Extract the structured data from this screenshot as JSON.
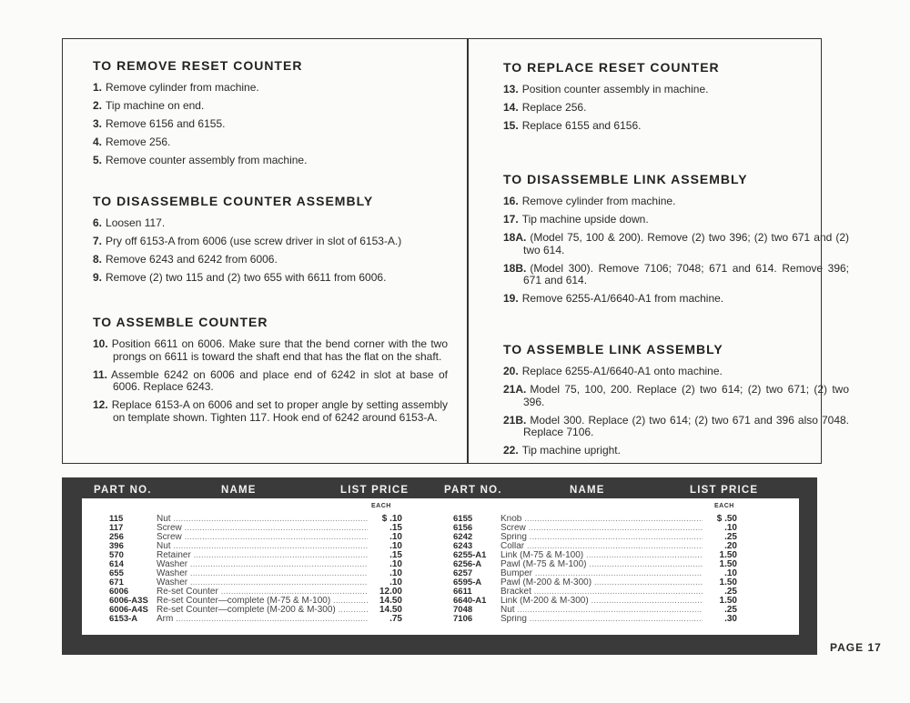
{
  "sections_left": [
    {
      "title": "TO REMOVE RESET COUNTER",
      "steps": [
        {
          "n": "1.",
          "t": "Remove cylinder from machine."
        },
        {
          "n": "2.",
          "t": "Tip machine on end."
        },
        {
          "n": "3.",
          "t": "Remove 6156 and 6155."
        },
        {
          "n": "4.",
          "t": "Remove 256."
        },
        {
          "n": "5.",
          "t": "Remove counter assembly from machine."
        }
      ]
    },
    {
      "title": "TO DISASSEMBLE COUNTER ASSEMBLY",
      "steps": [
        {
          "n": "6.",
          "t": "Loosen 117."
        },
        {
          "n": "7.",
          "t": "Pry off 6153-A from 6006 (use screw driver in slot of 6153-A.)"
        },
        {
          "n": "8.",
          "t": "Remove 6243 and 6242 from 6006."
        },
        {
          "n": "9.",
          "t": "Remove (2) two 115 and (2) two 655 with 6611 from 6006."
        }
      ]
    },
    {
      "title": "TO ASSEMBLE COUNTER",
      "steps": [
        {
          "n": "10.",
          "t": "Position 6611 on 6006. Make sure that the bend corner with the two prongs on 6611 is toward the shaft end that has the flat on the shaft."
        },
        {
          "n": "11.",
          "t": "Assemble 6242 on 6006 and place end of 6242 in slot at base of 6006. Replace 6243."
        },
        {
          "n": "12.",
          "t": "Replace 6153-A on 6006 and set to proper angle by setting assembly on template shown. Tighten 117. Hook end of 6242 around 6153-A."
        }
      ]
    }
  ],
  "sections_right": [
    {
      "title": "TO REPLACE RESET COUNTER",
      "steps": [
        {
          "n": "13.",
          "t": "Position counter assembly in machine."
        },
        {
          "n": "14.",
          "t": "Replace 256."
        },
        {
          "n": "15.",
          "t": "Replace 6155 and 6156."
        }
      ]
    },
    {
      "title": "TO DISASSEMBLE LINK ASSEMBLY",
      "steps": [
        {
          "n": "16.",
          "t": "Remove cylinder from machine."
        },
        {
          "n": "17.",
          "t": "Tip machine upside down."
        },
        {
          "n": "18A.",
          "t": "(Model 75, 100 & 200). Remove (2) two 396; (2) two 671 and (2) two 614."
        },
        {
          "n": "18B.",
          "t": "(Model 300). Remove 7106; 7048; 671 and 614. Remove 396; 671 and 614."
        },
        {
          "n": "19.",
          "t": "Remove 6255-A1/6640-A1 from machine."
        }
      ]
    },
    {
      "title": "TO ASSEMBLE LINK ASSEMBLY",
      "steps": [
        {
          "n": "20.",
          "t": "Replace 6255-A1/6640-A1 onto machine."
        },
        {
          "n": "21A.",
          "t": "Model 75, 100, 200. Replace (2) two 614; (2) two 671; (2) two 396."
        },
        {
          "n": "21B.",
          "t": "Model 300. Replace (2) two 614; (2) two 671 and 396 also 7048. Replace 7106."
        },
        {
          "n": "22.",
          "t": "Tip machine upright."
        }
      ]
    }
  ],
  "parts": {
    "headers": {
      "part_no": "PART NO.",
      "name": "NAME",
      "list_price": "LIST PRICE",
      "each": "EACH"
    },
    "left": [
      {
        "p": "115",
        "n": "Nut",
        "pr": "$ .10"
      },
      {
        "p": "117",
        "n": "Screw",
        "pr": ".15"
      },
      {
        "p": "256",
        "n": "Screw",
        "pr": ".10"
      },
      {
        "p": "396",
        "n": "Nut",
        "pr": ".10"
      },
      {
        "p": "570",
        "n": "Retainer",
        "pr": ".15"
      },
      {
        "p": "614",
        "n": "Washer",
        "pr": ".10"
      },
      {
        "p": "655",
        "n": "Washer",
        "pr": ".10"
      },
      {
        "p": "671",
        "n": "Washer",
        "pr": ".10"
      },
      {
        "p": "6006",
        "n": "Re-set Counter",
        "pr": "12.00"
      },
      {
        "p": "6006-A3S",
        "n": "Re-set Counter—complete (M-75 & M-100)",
        "pr": "14.50"
      },
      {
        "p": "6006-A4S",
        "n": "Re-set Counter—complete (M-200 & M-300)",
        "pr": "14.50"
      },
      {
        "p": "6153-A",
        "n": "Arm",
        "pr": ".75"
      }
    ],
    "right": [
      {
        "p": "6155",
        "n": "Knob",
        "pr": "$ .50"
      },
      {
        "p": "6156",
        "n": "Screw",
        "pr": ".10"
      },
      {
        "p": "6242",
        "n": "Spring",
        "pr": ".25"
      },
      {
        "p": "6243",
        "n": "Collar",
        "pr": ".20"
      },
      {
        "p": "6255-A1",
        "n": "Link (M-75 & M-100)",
        "pr": "1.50"
      },
      {
        "p": "6256-A",
        "n": "Pawl (M-75 & M-100)",
        "pr": "1.50"
      },
      {
        "p": "6257",
        "n": "Bumper",
        "pr": ".10"
      },
      {
        "p": "6595-A",
        "n": "Pawl (M-200 & M-300)",
        "pr": "1.50"
      },
      {
        "p": "6611",
        "n": "Bracket",
        "pr": ".25"
      },
      {
        "p": "6640-A1",
        "n": "Link (M-200 & M-300)",
        "pr": "1.50"
      },
      {
        "p": "7048",
        "n": "Nut",
        "pr": ".25"
      },
      {
        "p": "7106",
        "n": "Spring",
        "pr": ".30"
      }
    ]
  },
  "page_label": "PAGE 17"
}
